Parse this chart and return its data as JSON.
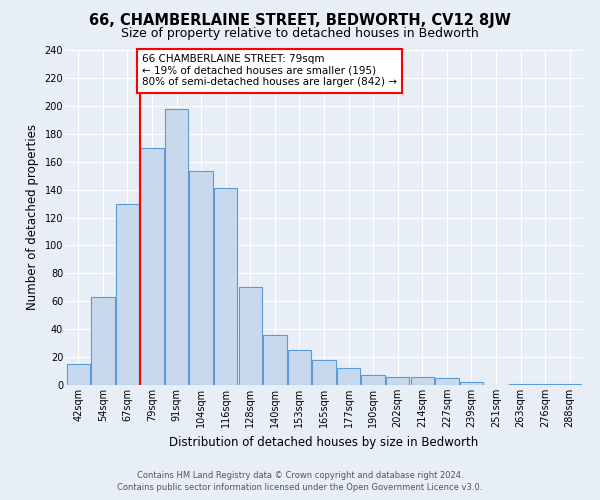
{
  "title": "66, CHAMBERLAINE STREET, BEDWORTH, CV12 8JW",
  "subtitle": "Size of property relative to detached houses in Bedworth",
  "xlabel": "Distribution of detached houses by size in Bedworth",
  "ylabel": "Number of detached properties",
  "bin_labels": [
    "42sqm",
    "54sqm",
    "67sqm",
    "79sqm",
    "91sqm",
    "104sqm",
    "116sqm",
    "128sqm",
    "140sqm",
    "153sqm",
    "165sqm",
    "177sqm",
    "190sqm",
    "202sqm",
    "214sqm",
    "227sqm",
    "239sqm",
    "251sqm",
    "263sqm",
    "276sqm",
    "288sqm"
  ],
  "bar_heights": [
    15,
    63,
    130,
    170,
    198,
    153,
    141,
    70,
    36,
    25,
    18,
    12,
    7,
    6,
    6,
    5,
    2,
    0,
    1,
    1,
    1
  ],
  "bar_color": "#c9d9ed",
  "bar_edge_color": "#5b9bd5",
  "bar_edge_width": 0.8,
  "vline_index": 3,
  "vline_color": "red",
  "annotation_text": "66 CHAMBERLAINE STREET: 79sqm\n← 19% of detached houses are smaller (195)\n80% of semi-detached houses are larger (842) →",
  "annotation_box_color": "white",
  "annotation_box_edge": "red",
  "ylim": [
    0,
    240
  ],
  "yticks": [
    0,
    20,
    40,
    60,
    80,
    100,
    120,
    140,
    160,
    180,
    200,
    220,
    240
  ],
  "footer_line1": "Contains HM Land Registry data © Crown copyright and database right 2024.",
  "footer_line2": "Contains public sector information licensed under the Open Government Licence v3.0.",
  "bg_color": "#e8eef5",
  "plot_bg_color": "#e8eef5",
  "title_fontsize": 10.5,
  "subtitle_fontsize": 9,
  "axis_label_fontsize": 8.5,
  "tick_fontsize": 7,
  "annotation_fontsize": 7.5,
  "footer_fontsize": 6
}
